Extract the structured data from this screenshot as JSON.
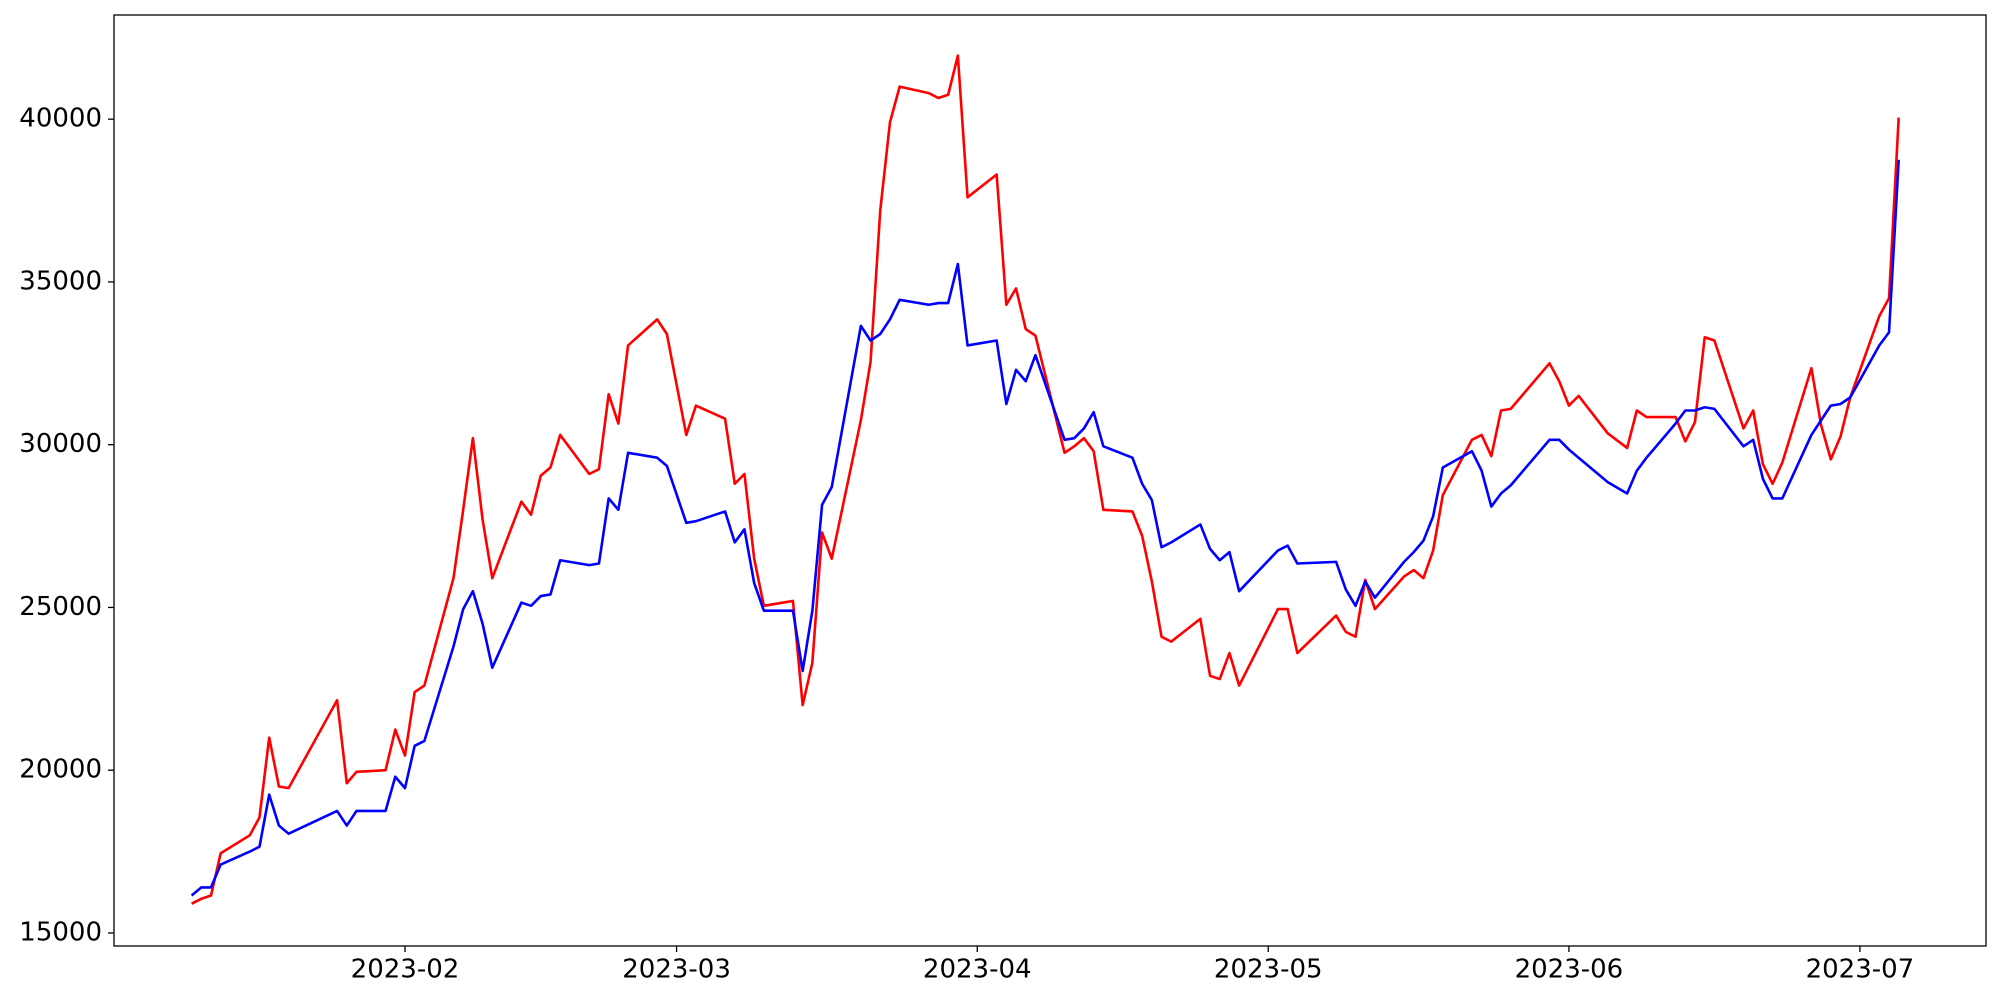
{
  "chart_data": {
    "type": "line",
    "x": [
      19367,
      19368,
      19369,
      19370,
      19373,
      19374,
      19375,
      19376,
      19377,
      19382,
      19383,
      19384,
      19387,
      19388,
      19389,
      19390,
      19391,
      19394,
      19395,
      19396,
      19397,
      19398,
      19401,
      19402,
      19403,
      19404,
      19405,
      19408,
      19409,
      19410,
      19411,
      19412,
      19415,
      19416,
      19418,
      19419,
      19422,
      19423,
      19424,
      19425,
      19426,
      19429,
      19430,
      19431,
      19432,
      19433,
      19436,
      19437,
      19438,
      19439,
      19440,
      19443,
      19444,
      19445,
      19446,
      19447,
      19450,
      19451,
      19452,
      19453,
      19454,
      19457,
      19458,
      19459,
      19460,
      19461,
      19464,
      19465,
      19466,
      19467,
      19468,
      19471,
      19472,
      19473,
      19474,
      19475,
      19479,
      19480,
      19481,
      19485,
      19486,
      19487,
      19488,
      19489,
      19492,
      19493,
      19494,
      19495,
      19496,
      19499,
      19500,
      19501,
      19502,
      19503,
      19507,
      19508,
      19509,
      19510,
      19513,
      19515,
      19516,
      19517,
      19520,
      19521,
      19522,
      19523,
      19524,
      19527,
      19528,
      19529,
      19530,
      19531,
      19534,
      19535,
      19536,
      19537,
      19538,
      19541,
      19542,
      19543
    ],
    "series": [
      {
        "color": "#ff0000",
        "values": [
          15900,
          16050,
          16150,
          17450,
          18000,
          18550,
          21000,
          19500,
          19450,
          22150,
          19600,
          19950,
          20000,
          21250,
          20450,
          22400,
          22600,
          25900,
          28000,
          30200,
          27700,
          25900,
          28250,
          27850,
          29050,
          29300,
          30300,
          29100,
          29250,
          31550,
          30650,
          33050,
          33850,
          33400,
          30300,
          31200,
          30800,
          28800,
          29100,
          26500,
          25050,
          25200,
          22000,
          23300,
          27300,
          26500,
          30750,
          32550,
          37200,
          39900,
          41000,
          40800,
          40650,
          40750,
          41950,
          37600,
          38300,
          34300,
          34800,
          33550,
          33350,
          29750,
          29950,
          30200,
          29800,
          28000,
          27950,
          27200,
          25800,
          24100,
          23950,
          24650,
          22900,
          22800,
          23600,
          22600,
          24950,
          24950,
          23600,
          24750,
          24250,
          24100,
          25850,
          24950,
          25950,
          26150,
          25900,
          26750,
          28450,
          30150,
          30300,
          29650,
          31050,
          31100,
          32500,
          31950,
          31200,
          31500,
          30350,
          29900,
          31050,
          30850,
          30850,
          30100,
          30700,
          33300,
          33200,
          30500,
          31050,
          29400,
          28800,
          29450,
          32350,
          30600,
          29550,
          30250,
          31450,
          33950,
          34500,
          40050
        ]
      },
      {
        "color": "#0000ff",
        "values": [
          16150,
          16400,
          16400,
          17100,
          17500,
          17650,
          19250,
          18300,
          18050,
          18750,
          18300,
          18750,
          18750,
          19800,
          19450,
          20750,
          20900,
          23800,
          24950,
          25500,
          24500,
          23150,
          25150,
          25050,
          25350,
          25400,
          26450,
          26300,
          26350,
          28350,
          28000,
          29750,
          29600,
          29350,
          27600,
          27650,
          27950,
          27000,
          27400,
          25750,
          24900,
          24900,
          23050,
          24900,
          28150,
          28700,
          33650,
          33200,
          33400,
          33850,
          34450,
          34300,
          34350,
          34350,
          35550,
          33050,
          33200,
          31250,
          32300,
          31950,
          32750,
          30150,
          30200,
          30500,
          31000,
          29950,
          29600,
          28800,
          28300,
          26850,
          27000,
          27550,
          26800,
          26450,
          26700,
          25500,
          26750,
          26900,
          26350,
          26400,
          25550,
          25050,
          25800,
          25300,
          26400,
          26700,
          27050,
          27800,
          29300,
          29800,
          29200,
          28100,
          28500,
          28750,
          30150,
          30150,
          29850,
          29600,
          28850,
          28500,
          29200,
          29600,
          30650,
          31050,
          31050,
          31150,
          31100,
          29950,
          30150,
          28950,
          28350,
          28350,
          30300,
          30750,
          31200,
          31250,
          31450,
          33050,
          33450,
          38750
        ]
      }
    ],
    "xlim": [
      19359,
      19552
    ],
    "xticks": [
      {
        "value": 19389,
        "label": "2023-02"
      },
      {
        "value": 19417,
        "label": "2023-03"
      },
      {
        "value": 19448,
        "label": "2023-04"
      },
      {
        "value": 19478,
        "label": "2023-05"
      },
      {
        "value": 19509,
        "label": "2023-06"
      },
      {
        "value": 19539,
        "label": "2023-07"
      }
    ],
    "ylim": [
      14600,
      43200
    ],
    "yticks": [
      15000,
      20000,
      25000,
      30000,
      35000,
      40000
    ],
    "grid": false
  }
}
